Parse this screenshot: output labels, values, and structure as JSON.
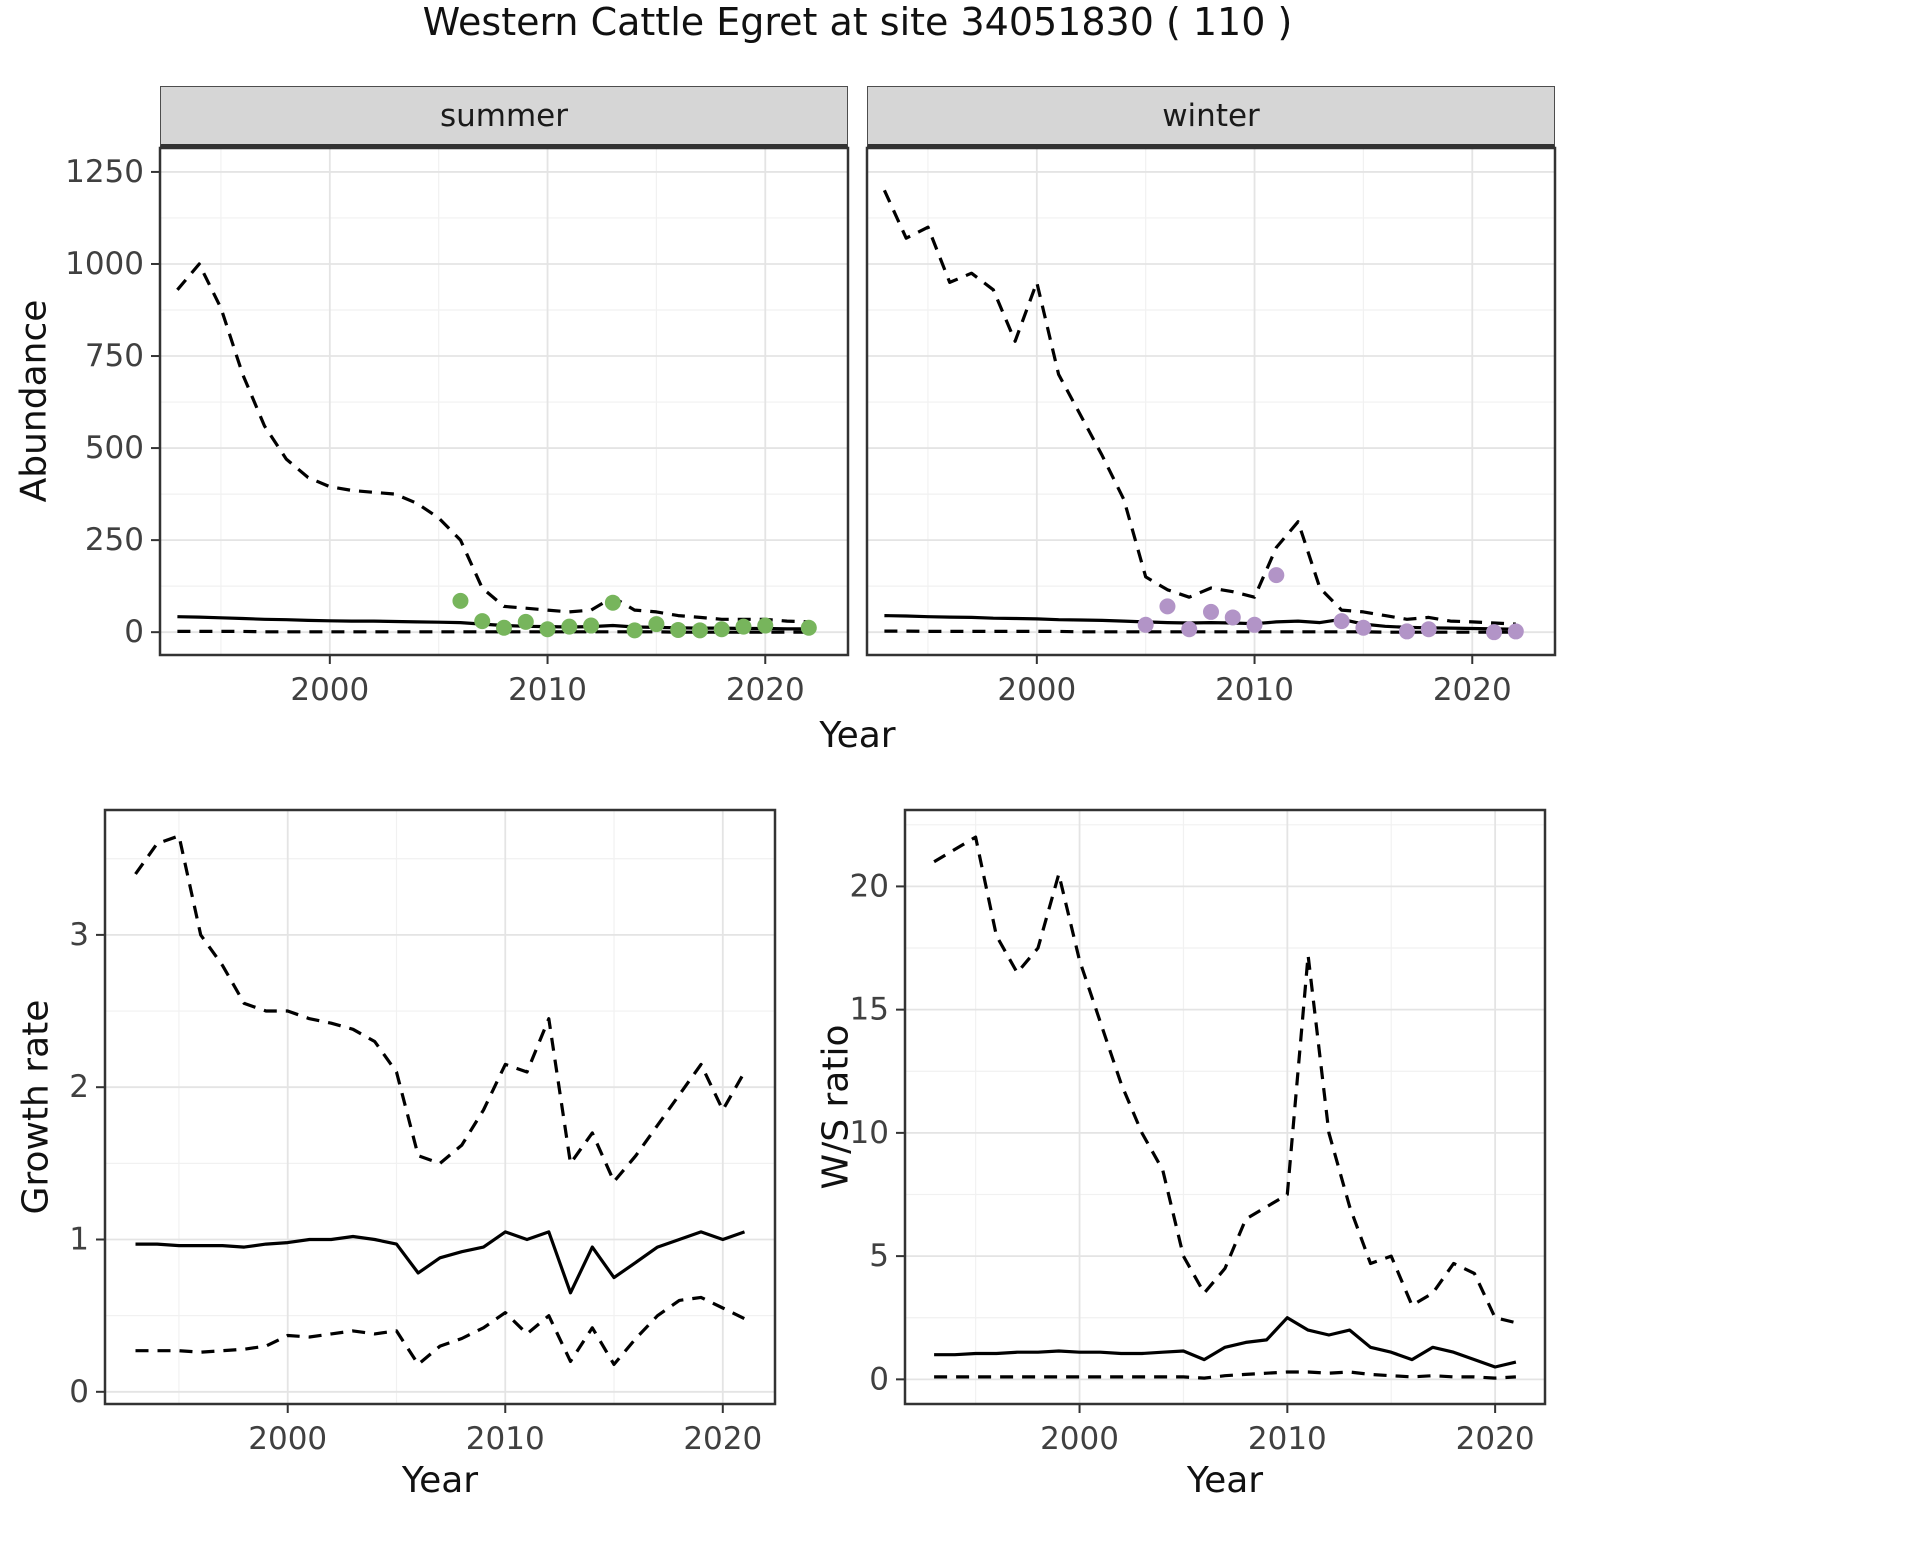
{
  "title": "Western Cattle Egret at site 34051830 ( 110 )",
  "facets": [
    "summer",
    "winter"
  ],
  "axes": {
    "abundance_ylabel": "Abundance",
    "top_xlabel": "Year",
    "growth_ylabel": "Growth rate",
    "growth_xlabel": "Year",
    "ws_ylabel": "W/S ratio",
    "ws_xlabel": "Year"
  },
  "colors": {
    "summer_points": "#77b55c",
    "winter_points": "#b294c7",
    "line": "#000000",
    "grid_major": "#e4e4e4",
    "grid_minor": "#f1f1f1",
    "strip_bg": "#d6d6d6",
    "axis_text": "#404040",
    "panel_border": "#333333"
  },
  "chart_data": [
    {
      "id": "abundance_summer",
      "type": "line",
      "facet": "summer",
      "title": "Western Cattle Egret at site 34051830 ( 110 )",
      "xlabel": "Year",
      "ylabel": "Abundance",
      "xlim": [
        1992.2,
        2023.8
      ],
      "ylim": [
        -62,
        1315
      ],
      "xticks": [
        2000,
        2010,
        2020
      ],
      "yticks": [
        0,
        250,
        500,
        750,
        1000,
        1250
      ],
      "series": [
        {
          "name": "upper-ci",
          "style": "dashed",
          "x": [
            1993,
            1994,
            1995,
            1996,
            1997,
            1998,
            1999,
            2000,
            2001,
            2002,
            2003,
            2004,
            2005,
            2006,
            2007,
            2008,
            2009,
            2010,
            2011,
            2012,
            2013,
            2014,
            2015,
            2016,
            2017,
            2018,
            2019,
            2020,
            2021,
            2022
          ],
          "y": [
            930,
            1000,
            880,
            700,
            560,
            470,
            420,
            395,
            385,
            380,
            375,
            350,
            310,
            250,
            120,
            70,
            65,
            60,
            55,
            60,
            95,
            60,
            55,
            45,
            40,
            35,
            35,
            35,
            30,
            28
          ]
        },
        {
          "name": "median",
          "style": "solid",
          "x": [
            1993,
            1994,
            1995,
            1996,
            1997,
            1998,
            1999,
            2000,
            2001,
            2002,
            2003,
            2004,
            2005,
            2006,
            2007,
            2008,
            2009,
            2010,
            2011,
            2012,
            2013,
            2014,
            2015,
            2016,
            2017,
            2018,
            2019,
            2020,
            2021,
            2022
          ],
          "y": [
            42,
            41,
            39,
            37,
            35,
            34,
            32,
            31,
            30,
            30,
            29,
            28,
            27,
            26,
            22,
            18,
            16,
            15,
            14,
            15,
            18,
            14,
            13,
            12,
            11,
            11,
            10,
            10,
            9,
            9
          ]
        },
        {
          "name": "lower-ci",
          "style": "dashed",
          "x": [
            1993,
            1994,
            1995,
            1996,
            1997,
            1998,
            1999,
            2000,
            2001,
            2002,
            2003,
            2004,
            2005,
            2006,
            2007,
            2008,
            2009,
            2010,
            2011,
            2012,
            2013,
            2014,
            2015,
            2016,
            2017,
            2018,
            2019,
            2020,
            2021,
            2022
          ],
          "y": [
            2,
            2,
            2,
            2,
            1,
            1,
            1,
            1,
            1,
            1,
            1,
            1,
            1,
            1,
            1,
            1,
            1,
            1,
            1,
            1,
            1,
            1,
            1,
            0,
            0,
            0,
            0,
            0,
            0,
            0
          ]
        },
        {
          "name": "observations",
          "style": "points",
          "color": "#77b55c",
          "x": [
            2006,
            2007,
            2008,
            2009,
            2010,
            2011,
            2012,
            2013,
            2014,
            2015,
            2016,
            2017,
            2018,
            2019,
            2020,
            2022
          ],
          "y": [
            85,
            30,
            12,
            28,
            8,
            15,
            18,
            80,
            5,
            22,
            6,
            5,
            8,
            15,
            18,
            12
          ]
        }
      ]
    },
    {
      "id": "abundance_winter",
      "type": "line",
      "facet": "winter",
      "title": "Western Cattle Egret at site 34051830 ( 110 )",
      "xlabel": "Year",
      "ylabel": "Abundance",
      "xlim": [
        1992.2,
        2023.8
      ],
      "ylim": [
        -62,
        1315
      ],
      "xticks": [
        2000,
        2010,
        2020
      ],
      "yticks": [
        0,
        250,
        500,
        750,
        1000,
        1250
      ],
      "series": [
        {
          "name": "upper-ci",
          "style": "dashed",
          "x": [
            1993,
            1994,
            1995,
            1996,
            1997,
            1998,
            1999,
            2000,
            2001,
            2002,
            2003,
            2004,
            2005,
            2006,
            2007,
            2008,
            2009,
            2010,
            2011,
            2012,
            2013,
            2014,
            2015,
            2016,
            2017,
            2018,
            2019,
            2020,
            2021,
            2022
          ],
          "y": [
            1200,
            1070,
            1100,
            950,
            975,
            930,
            790,
            950,
            700,
            590,
            480,
            360,
            150,
            115,
            95,
            120,
            110,
            95,
            230,
            300,
            120,
            60,
            55,
            45,
            35,
            40,
            30,
            28,
            25,
            22
          ]
        },
        {
          "name": "median",
          "style": "solid",
          "x": [
            1993,
            1994,
            1995,
            1996,
            1997,
            1998,
            1999,
            2000,
            2001,
            2002,
            2003,
            2004,
            2005,
            2006,
            2007,
            2008,
            2009,
            2010,
            2011,
            2012,
            2013,
            2014,
            2015,
            2016,
            2017,
            2018,
            2019,
            2020,
            2021,
            2022
          ],
          "y": [
            45,
            44,
            42,
            41,
            40,
            38,
            37,
            36,
            34,
            33,
            32,
            30,
            28,
            26,
            25,
            26,
            25,
            23,
            28,
            30,
            26,
            35,
            22,
            16,
            13,
            12,
            11,
            10,
            9,
            8
          ]
        },
        {
          "name": "lower-ci",
          "style": "dashed",
          "x": [
            1993,
            1994,
            1995,
            1996,
            1997,
            1998,
            1999,
            2000,
            2001,
            2002,
            2003,
            2004,
            2005,
            2006,
            2007,
            2008,
            2009,
            2010,
            2011,
            2012,
            2013,
            2014,
            2015,
            2016,
            2017,
            2018,
            2019,
            2020,
            2021,
            2022
          ],
          "y": [
            3,
            3,
            2,
            2,
            2,
            2,
            2,
            2,
            2,
            1,
            1,
            1,
            1,
            1,
            1,
            1,
            1,
            1,
            1,
            1,
            1,
            1,
            1,
            0,
            0,
            0,
            0,
            0,
            0,
            0
          ]
        },
        {
          "name": "observations",
          "style": "points",
          "color": "#b294c7",
          "x": [
            2005,
            2006,
            2007,
            2008,
            2009,
            2010,
            2011,
            2014,
            2015,
            2017,
            2018,
            2021,
            2022
          ],
          "y": [
            20,
            70,
            8,
            55,
            40,
            20,
            155,
            30,
            12,
            2,
            8,
            0,
            2
          ]
        }
      ]
    },
    {
      "id": "growth_rate",
      "type": "line",
      "title": "",
      "xlabel": "Year",
      "ylabel": "Growth rate",
      "xlim": [
        1991.6,
        2022.4
      ],
      "ylim": [
        -0.08,
        3.82
      ],
      "xticks": [
        2000,
        2010,
        2020
      ],
      "yticks": [
        0,
        1,
        2,
        3
      ],
      "series": [
        {
          "name": "upper-ci",
          "style": "dashed",
          "x": [
            1993,
            1994,
            1995,
            1996,
            1997,
            1998,
            1999,
            2000,
            2001,
            2002,
            2003,
            2004,
            2005,
            2006,
            2007,
            2008,
            2009,
            2010,
            2011,
            2012,
            2013,
            2014,
            2015,
            2016,
            2017,
            2018,
            2019,
            2020,
            2021
          ],
          "y": [
            3.4,
            3.6,
            3.65,
            3.0,
            2.8,
            2.55,
            2.5,
            2.5,
            2.45,
            2.42,
            2.38,
            2.3,
            2.1,
            1.55,
            1.5,
            1.62,
            1.85,
            2.15,
            2.1,
            2.45,
            1.5,
            1.7,
            1.38,
            1.55,
            1.75,
            1.95,
            2.15,
            1.85,
            2.1
          ]
        },
        {
          "name": "median",
          "style": "solid",
          "x": [
            1993,
            1994,
            1995,
            1996,
            1997,
            1998,
            1999,
            2000,
            2001,
            2002,
            2003,
            2004,
            2005,
            2006,
            2007,
            2008,
            2009,
            2010,
            2011,
            2012,
            2013,
            2014,
            2015,
            2016,
            2017,
            2018,
            2019,
            2020,
            2021
          ],
          "y": [
            0.97,
            0.97,
            0.96,
            0.96,
            0.96,
            0.95,
            0.97,
            0.98,
            1.0,
            1.0,
            1.02,
            1.0,
            0.97,
            0.78,
            0.88,
            0.92,
            0.95,
            1.05,
            1.0,
            1.05,
            0.65,
            0.95,
            0.75,
            0.85,
            0.95,
            1.0,
            1.05,
            1.0,
            1.05
          ]
        },
        {
          "name": "lower-ci",
          "style": "dashed",
          "x": [
            1993,
            1994,
            1995,
            1996,
            1997,
            1998,
            1999,
            2000,
            2001,
            2002,
            2003,
            2004,
            2005,
            2006,
            2007,
            2008,
            2009,
            2010,
            2011,
            2012,
            2013,
            2014,
            2015,
            2016,
            2017,
            2018,
            2019,
            2020,
            2021
          ],
          "y": [
            0.27,
            0.27,
            0.27,
            0.26,
            0.27,
            0.28,
            0.3,
            0.37,
            0.36,
            0.38,
            0.4,
            0.38,
            0.4,
            0.18,
            0.3,
            0.35,
            0.42,
            0.52,
            0.38,
            0.5,
            0.2,
            0.42,
            0.18,
            0.35,
            0.5,
            0.6,
            0.62,
            0.55,
            0.48
          ]
        }
      ]
    },
    {
      "id": "ws_ratio",
      "type": "line",
      "title": "",
      "xlabel": "Year",
      "ylabel": "W/S ratio",
      "xlim": [
        1991.6,
        2022.4
      ],
      "ylim": [
        -1.0,
        23.1
      ],
      "xticks": [
        2000,
        2010,
        2020
      ],
      "yticks": [
        0,
        5,
        10,
        15,
        20
      ],
      "series": [
        {
          "name": "upper-ci",
          "style": "dashed",
          "x": [
            1993,
            1994,
            1995,
            1996,
            1997,
            1998,
            1999,
            2000,
            2001,
            2002,
            2003,
            2004,
            2005,
            2006,
            2007,
            2008,
            2009,
            2010,
            2011,
            2012,
            2013,
            2014,
            2015,
            2016,
            2017,
            2018,
            2019,
            2020,
            2021
          ],
          "y": [
            21,
            21.5,
            22,
            18,
            16.5,
            17.5,
            20.5,
            17,
            14.5,
            12,
            10,
            8.5,
            5,
            3.5,
            4.5,
            6.5,
            7,
            7.5,
            17.2,
            10,
            7,
            4.7,
            5,
            3,
            3.5,
            4.7,
            4.3,
            2.5,
            2.3
          ]
        },
        {
          "name": "median",
          "style": "solid",
          "x": [
            1993,
            1994,
            1995,
            1996,
            1997,
            1998,
            1999,
            2000,
            2001,
            2002,
            2003,
            2004,
            2005,
            2006,
            2007,
            2008,
            2009,
            2010,
            2011,
            2012,
            2013,
            2014,
            2015,
            2016,
            2017,
            2018,
            2019,
            2020,
            2021
          ],
          "y": [
            1.0,
            1.0,
            1.05,
            1.05,
            1.1,
            1.1,
            1.15,
            1.1,
            1.1,
            1.05,
            1.05,
            1.1,
            1.15,
            0.8,
            1.3,
            1.5,
            1.6,
            2.5,
            2.0,
            1.8,
            2.0,
            1.3,
            1.1,
            0.8,
            1.3,
            1.1,
            0.8,
            0.5,
            0.7
          ]
        },
        {
          "name": "lower-ci",
          "style": "dashed",
          "x": [
            1993,
            1994,
            1995,
            1996,
            1997,
            1998,
            1999,
            2000,
            2001,
            2002,
            2003,
            2004,
            2005,
            2006,
            2007,
            2008,
            2009,
            2010,
            2011,
            2012,
            2013,
            2014,
            2015,
            2016,
            2017,
            2018,
            2019,
            2020,
            2021
          ],
          "y": [
            0.1,
            0.1,
            0.1,
            0.1,
            0.1,
            0.1,
            0.1,
            0.1,
            0.1,
            0.1,
            0.1,
            0.1,
            0.1,
            0.05,
            0.15,
            0.2,
            0.25,
            0.3,
            0.3,
            0.25,
            0.3,
            0.2,
            0.15,
            0.1,
            0.15,
            0.1,
            0.1,
            0.05,
            0.1
          ]
        }
      ]
    }
  ]
}
